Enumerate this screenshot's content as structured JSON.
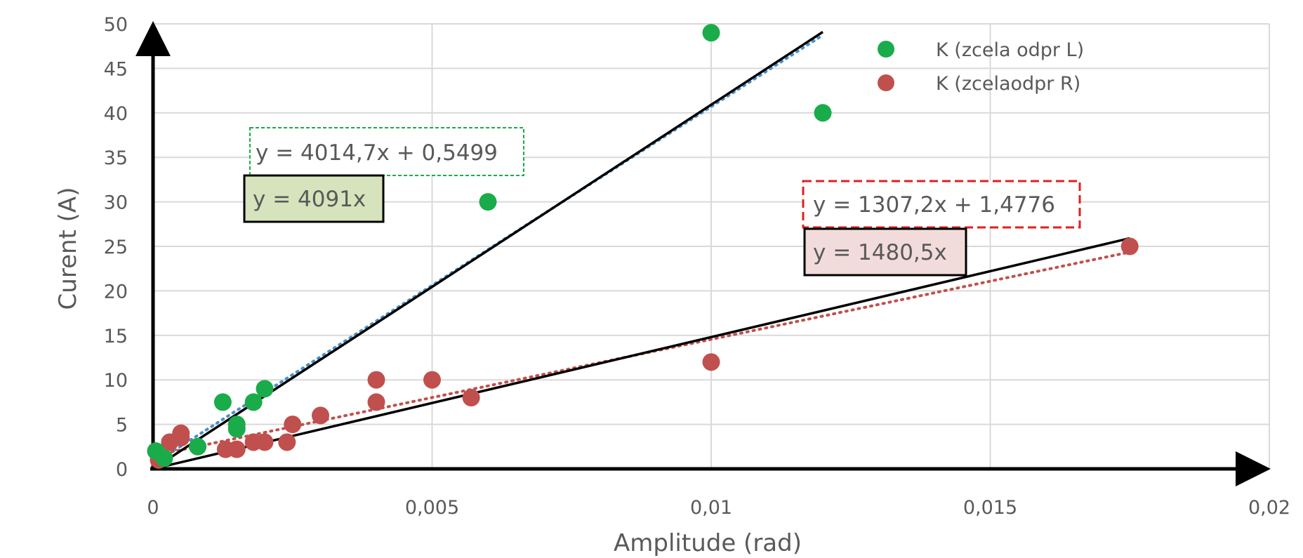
{
  "chart_data": {
    "type": "scatter",
    "xlabel": "Amplitude (rad)",
    "ylabel": "Curent (A)",
    "xlim": [
      0,
      0.02
    ],
    "ylim": [
      0,
      50
    ],
    "x_ticks": [
      "0",
      "0,005",
      "0,01",
      "0,015",
      "0,02"
    ],
    "y_ticks": [
      "0",
      "5",
      "10",
      "15",
      "20",
      "25",
      "30",
      "35",
      "40",
      "45",
      "50"
    ],
    "grid": true,
    "legend_position": "top-right",
    "series": [
      {
        "name": "K (zcela odpr L)",
        "color": "#1aab4a",
        "points": [
          [
            5e-05,
            2
          ],
          [
            0.0002,
            1.2
          ],
          [
            0.0008,
            2.5
          ],
          [
            0.00125,
            7.5
          ],
          [
            0.0015,
            4.5
          ],
          [
            0.0015,
            5
          ],
          [
            0.0018,
            7.5
          ],
          [
            0.002,
            9
          ],
          [
            0.006,
            30
          ],
          [
            0.01,
            49
          ],
          [
            0.012,
            40
          ]
        ],
        "trendline_dotted": {
          "slope": 4014.7,
          "intercept": 0.5499,
          "x_range": [
            0,
            0.012
          ],
          "color": "#4a90c8"
        },
        "trendline_solid": {
          "slope": 4091,
          "intercept": 0,
          "x_range": [
            0,
            0.012
          ],
          "color": "#000000"
        }
      },
      {
        "name": "K (zcelaodpr R)",
        "color": "#c0504d",
        "points": [
          [
            0.0001,
            1
          ],
          [
            0.0003,
            3
          ],
          [
            0.0005,
            4
          ],
          [
            0.0005,
            3.5
          ],
          [
            0.0013,
            2.2
          ],
          [
            0.0015,
            2.2
          ],
          [
            0.0018,
            3
          ],
          [
            0.002,
            3
          ],
          [
            0.0024,
            3
          ],
          [
            0.0025,
            5
          ],
          [
            0.003,
            6
          ],
          [
            0.004,
            10
          ],
          [
            0.004,
            7.5
          ],
          [
            0.005,
            10
          ],
          [
            0.0057,
            8
          ],
          [
            0.01,
            12
          ],
          [
            0.0175,
            25
          ]
        ],
        "trendline_dotted": {
          "slope": 1307.2,
          "intercept": 1.4776,
          "x_range": [
            0,
            0.0175
          ],
          "color": "#c0504d"
        },
        "trendline_solid": {
          "slope": 1480.5,
          "intercept": 0,
          "x_range": [
            0,
            0.0175
          ],
          "color": "#000000"
        }
      }
    ],
    "annotations": {
      "eq_l_fit": "y = 4014,7x + 0,5499",
      "eq_l_zero": "y = 4091x",
      "eq_r_fit": "y = 1307,2x + 1,4776",
      "eq_r_zero": "y = 1480,5x"
    }
  }
}
